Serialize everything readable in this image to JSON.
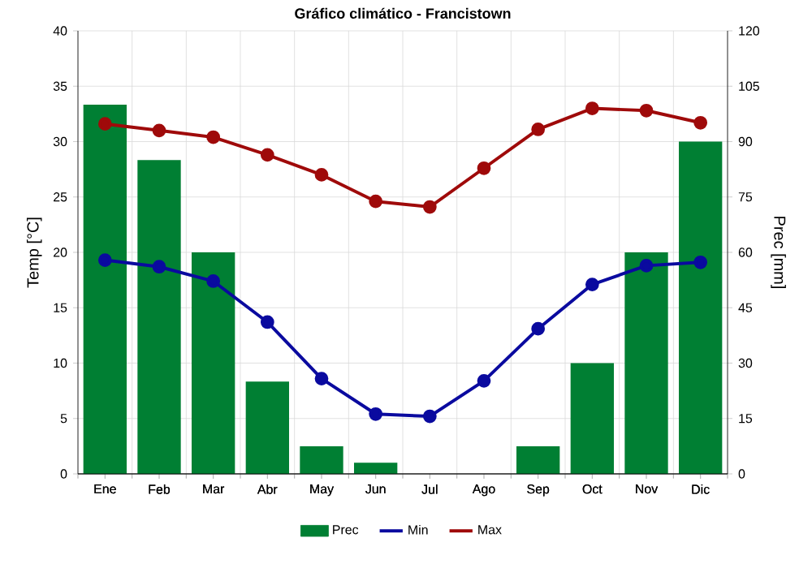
{
  "chart_data": {
    "type": "line",
    "title": "Gráfico climático - Francistown",
    "ylabel": "Temp [°C]",
    "y2label": "Prec [mm]",
    "categories": [
      "Ene",
      "Feb",
      "Mar",
      "Abr",
      "May",
      "Jun",
      "Jul",
      "Ago",
      "Sep",
      "Oct",
      "Nov",
      "Dic"
    ],
    "series": [
      {
        "name": "Prec",
        "type": "bar",
        "axis": "y2",
        "color": "#007f33",
        "values": [
          100,
          85,
          60,
          25,
          7.5,
          3,
          0,
          0,
          7.5,
          30,
          60,
          90
        ]
      },
      {
        "name": "Min",
        "color": "#0a0a9f",
        "values": [
          19.3,
          18.7,
          17.4,
          13.7,
          8.6,
          5.4,
          5.2,
          8.4,
          13.1,
          17.1,
          18.8,
          19.1
        ]
      },
      {
        "name": "Max",
        "color": "#9f0a0a",
        "values": [
          31.6,
          31.0,
          30.4,
          28.8,
          27.0,
          24.6,
          24.1,
          27.6,
          31.1,
          33.0,
          32.8,
          31.7
        ]
      }
    ],
    "ylim": [
      0,
      40
    ],
    "yticks": [
      0,
      5,
      10,
      15,
      20,
      25,
      30,
      35,
      40
    ],
    "y2lim": [
      0,
      120
    ],
    "y2ticks": [
      0,
      15,
      30,
      45,
      60,
      75,
      90,
      105,
      120
    ],
    "grid": true,
    "legend": "bottom",
    "marker": "circle",
    "line_style": "solid"
  }
}
